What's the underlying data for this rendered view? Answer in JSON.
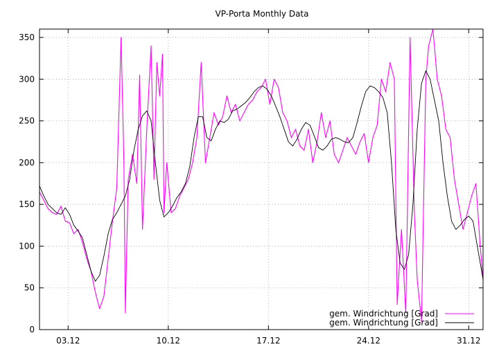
{
  "chart_data": {
    "type": "line",
    "title": "VP-Porta Monthly Data",
    "xlabel": "",
    "ylabel": "",
    "xlim": [
      1.0,
      32.0
    ],
    "ylim": [
      0,
      360
    ],
    "yticks": [
      0,
      50,
      100,
      150,
      200,
      250,
      300,
      350
    ],
    "xticks": [
      {
        "value": 3,
        "label": "03.12"
      },
      {
        "value": 10,
        "label": "10.12"
      },
      {
        "value": 17,
        "label": "17.12"
      },
      {
        "value": 24,
        "label": "24.12"
      },
      {
        "value": 31,
        "label": "31.12"
      }
    ],
    "grid": true,
    "legend_position": "bottom-right",
    "colors": {
      "raw": "#ff00ff",
      "smoothed": "#000000"
    },
    "series": [
      {
        "name": "gem. Windrichtung [Grad]",
        "style": "raw",
        "x": [
          1.0,
          1.3,
          1.6,
          1.9,
          2.2,
          2.5,
          2.8,
          3.1,
          3.4,
          3.7,
          4.0,
          4.3,
          4.6,
          4.9,
          5.2,
          5.5,
          5.8,
          6.1,
          6.4,
          6.7,
          6.9,
          7.0,
          7.2,
          7.5,
          7.8,
          8.0,
          8.2,
          8.5,
          8.8,
          9.0,
          9.2,
          9.4,
          9.6,
          9.7,
          9.9,
          10.2,
          10.5,
          10.8,
          11.1,
          11.4,
          11.7,
          12.0,
          12.3,
          12.6,
          12.9,
          13.2,
          13.5,
          13.8,
          14.1,
          14.4,
          14.7,
          15.0,
          15.3,
          15.6,
          15.9,
          16.2,
          16.5,
          16.8,
          17.1,
          17.4,
          17.7,
          18.0,
          18.3,
          18.6,
          18.9,
          19.2,
          19.5,
          19.8,
          20.1,
          20.4,
          20.7,
          21.0,
          21.3,
          21.6,
          21.9,
          22.2,
          22.5,
          22.8,
          23.1,
          23.4,
          23.7,
          24.0,
          24.3,
          24.6,
          24.9,
          25.2,
          25.5,
          25.8,
          26.0,
          26.3,
          26.6,
          26.9,
          27.2,
          27.4,
          27.7,
          28.0,
          28.2,
          28.5,
          28.8,
          29.1,
          29.4,
          29.7,
          30.0,
          30.3,
          30.6,
          30.9,
          31.2,
          31.5,
          31.8,
          32.0
        ],
        "y": [
          165,
          155,
          145,
          140,
          138,
          148,
          130,
          128,
          115,
          120,
          105,
          85,
          70,
          45,
          25,
          40,
          85,
          130,
          170,
          350,
          200,
          20,
          180,
          210,
          175,
          305,
          120,
          240,
          340,
          180,
          320,
          280,
          330,
          140,
          200,
          140,
          145,
          160,
          170,
          180,
          200,
          230,
          320,
          200,
          230,
          260,
          245,
          255,
          280,
          260,
          270,
          250,
          260,
          270,
          275,
          285,
          290,
          300,
          270,
          300,
          290,
          260,
          250,
          230,
          240,
          220,
          215,
          240,
          200,
          225,
          260,
          230,
          250,
          210,
          200,
          215,
          230,
          220,
          210,
          225,
          235,
          200,
          230,
          245,
          300,
          285,
          320,
          300,
          30,
          120,
          20,
          350,
          140,
          60,
          10,
          300,
          340,
          360,
          300,
          280,
          240,
          230,
          180,
          150,
          120,
          140,
          160,
          175,
          100,
          60
        ]
      },
      {
        "name": "gem. Windrichtung [Grad]",
        "style": "smoothed",
        "x": [
          1.0,
          1.3,
          1.6,
          1.9,
          2.2,
          2.5,
          2.8,
          3.1,
          3.4,
          3.7,
          4.0,
          4.3,
          4.6,
          4.9,
          5.2,
          5.5,
          5.8,
          6.1,
          6.4,
          6.7,
          7.0,
          7.3,
          7.6,
          7.9,
          8.2,
          8.5,
          8.8,
          9.1,
          9.4,
          9.7,
          10.0,
          10.3,
          10.6,
          10.9,
          11.2,
          11.5,
          11.8,
          12.1,
          12.4,
          12.7,
          13.0,
          13.3,
          13.6,
          13.9,
          14.2,
          14.5,
          14.8,
          15.1,
          15.4,
          15.7,
          16.0,
          16.3,
          16.6,
          16.9,
          17.2,
          17.5,
          17.8,
          18.1,
          18.4,
          18.7,
          19.0,
          19.3,
          19.6,
          19.9,
          20.2,
          20.5,
          20.8,
          21.1,
          21.4,
          21.7,
          22.0,
          22.3,
          22.6,
          22.9,
          23.2,
          23.5,
          23.8,
          24.1,
          24.4,
          24.7,
          25.0,
          25.3,
          25.6,
          25.9,
          26.2,
          26.5,
          26.8,
          27.1,
          27.4,
          27.7,
          28.0,
          28.3,
          28.6,
          28.9,
          29.2,
          29.5,
          29.8,
          30.1,
          30.4,
          30.7,
          31.0,
          31.3,
          31.6,
          32.0
        ],
        "y": [
          172,
          160,
          150,
          145,
          140,
          138,
          146,
          138,
          125,
          118,
          110,
          90,
          70,
          58,
          65,
          88,
          115,
          132,
          140,
          150,
          160,
          180,
          215,
          240,
          256,
          262,
          250,
          200,
          155,
          135,
          140,
          148,
          158,
          165,
          175,
          195,
          230,
          255,
          255,
          230,
          226,
          240,
          250,
          248,
          252,
          262,
          264,
          268,
          272,
          278,
          285,
          290,
          292,
          288,
          280,
          268,
          255,
          240,
          225,
          220,
          228,
          240,
          248,
          245,
          232,
          218,
          215,
          220,
          228,
          230,
          228,
          225,
          224,
          230,
          248,
          268,
          285,
          292,
          290,
          285,
          278,
          260,
          200,
          120,
          80,
          72,
          90,
          150,
          240,
          295,
          310,
          300,
          275,
          250,
          200,
          160,
          130,
          120,
          125,
          132,
          136,
          130,
          100,
          60
        ]
      }
    ]
  }
}
